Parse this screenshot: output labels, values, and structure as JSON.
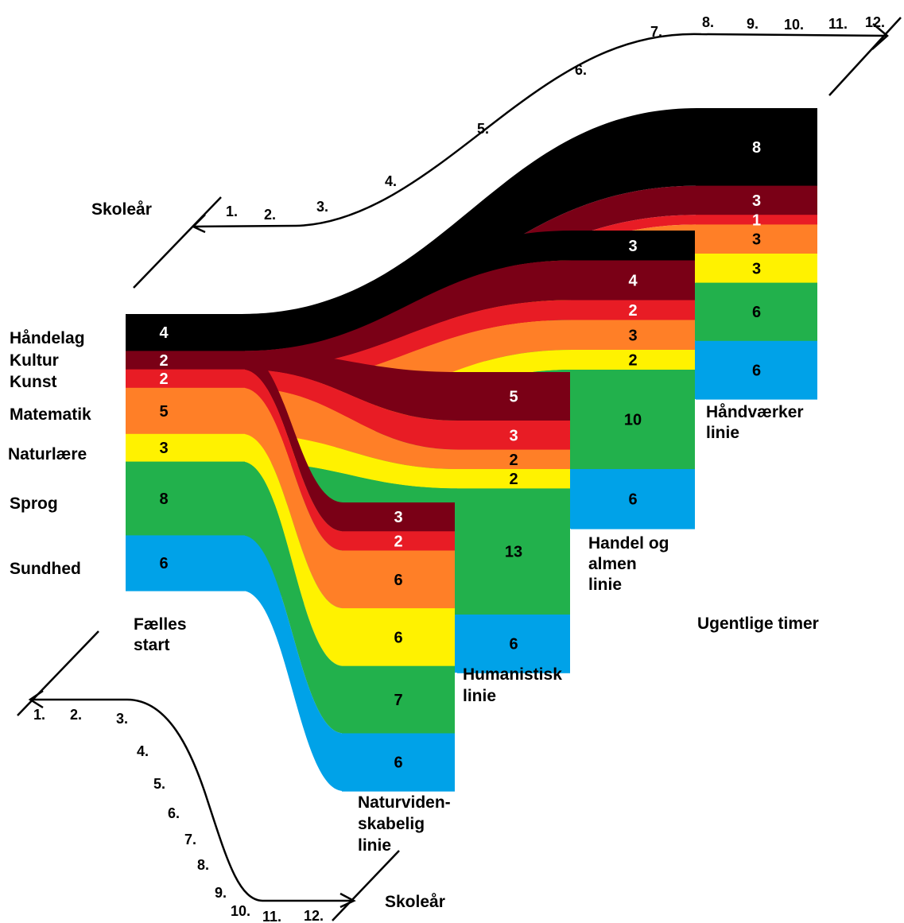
{
  "colors": {
    "haandelag": "#000000",
    "kultur": "#7a0016",
    "kunst": "#e81c25",
    "matematik": "#ff7f27",
    "naturlaere": "#fff200",
    "sprog": "#22b14c",
    "sundhed": "#00a2e8",
    "number_dark": "#000000",
    "number_light": "#ffffff"
  },
  "subjects": [
    {
      "key": "haandelag",
      "label": "Håndelag"
    },
    {
      "key": "kultur",
      "label": "Kultur"
    },
    {
      "key": "kunst",
      "label": "Kunst"
    },
    {
      "key": "matematik",
      "label": "Matematik"
    },
    {
      "key": "naturlaere",
      "label": "Naturlære"
    },
    {
      "key": "sprog",
      "label": "Sprog"
    },
    {
      "key": "sundhed",
      "label": "Sundhed"
    }
  ],
  "unit_label": "Ugentlige timer",
  "axis": {
    "title_top": "Skoleår",
    "title_bottom": "Skoleår",
    "ticks": [
      "1.",
      "2.",
      "3.",
      "4.",
      "5.",
      "6.",
      "7.",
      "8.",
      "9.",
      "10.",
      "11.",
      "12."
    ]
  },
  "stages": [
    {
      "key": "faelles",
      "name_lines": [
        "Fælles",
        "start"
      ],
      "values": {
        "haandelag": 4,
        "kultur": 2,
        "kunst": 2,
        "matematik": 5,
        "naturlaere": 3,
        "sprog": 8,
        "sundhed": 6
      }
    },
    {
      "key": "natur",
      "name_lines": [
        "Naturviden-",
        "skabelig",
        "linie"
      ],
      "values": {
        "kultur": 3,
        "kunst": 2,
        "matematik": 6,
        "naturlaere": 6,
        "sprog": 7,
        "sundhed": 6
      }
    },
    {
      "key": "human",
      "name_lines": [
        "Humanistisk",
        "linie"
      ],
      "values": {
        "kultur": 5,
        "kunst": 3,
        "matematik": 2,
        "naturlaere": 2,
        "sprog": 13,
        "sundhed": 6
      }
    },
    {
      "key": "handel",
      "name_lines": [
        "Handel og",
        "almen",
        "linie"
      ],
      "values": {
        "haandelag": 3,
        "kultur": 4,
        "kunst": 2,
        "matematik": 3,
        "naturlaere": 2,
        "sprog": 10,
        "sundhed": 6
      }
    },
    {
      "key": "haandvaerk",
      "name_lines": [
        "Håndværker",
        "linie"
      ],
      "values": {
        "haandelag": 8,
        "kultur": 3,
        "kunst": 1,
        "matematik": 3,
        "naturlaere": 3,
        "sprog": 6,
        "sundhed": 6
      }
    }
  ]
}
